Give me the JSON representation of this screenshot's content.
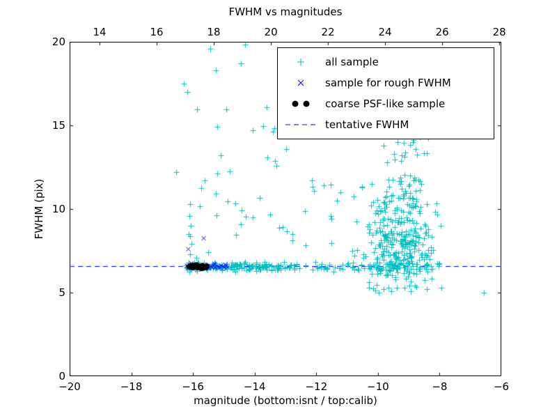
{
  "chart_data": {
    "type": "scatter",
    "title": "FWHM vs magnitudes",
    "xlabel": "magnitude (bottom:isnt / top:calib)",
    "ylabel": "FWHM (pix)",
    "xlim": [
      -20,
      -6
    ],
    "ylim": [
      0,
      20
    ],
    "top_xlim": [
      12.95,
      28.07
    ],
    "xticks": {
      "values": [
        -20,
        -18,
        -16,
        -14,
        -12,
        -10,
        -8,
        -6
      ],
      "labels": [
        "−20",
        "−18",
        "−16",
        "−14",
        "−12",
        "−10",
        "−8",
        "−6"
      ]
    },
    "top_xticks": {
      "values": [
        14,
        16,
        18,
        20,
        22,
        24,
        26,
        28
      ],
      "labels": [
        "14",
        "16",
        "18",
        "20",
        "22",
        "24",
        "26",
        "28"
      ]
    },
    "yticks": {
      "values": [
        0,
        5,
        10,
        15,
        20
      ],
      "labels": [
        "0",
        "5",
        "10",
        "15",
        "20"
      ]
    },
    "grid": false,
    "legend_position": "upper right",
    "seed": 42,
    "colors": {
      "all_sample": "#00bfbf",
      "rough_fwhm": "#0000ff",
      "coarse_psf": "#000000",
      "tentative_line": "#0000ff",
      "axis": "#000000"
    },
    "series": [
      {
        "name": "all sample",
        "marker": "plus",
        "color": "#00bfbf",
        "points": [
          [
            -6.57,
            5.0
          ],
          [
            -7.95,
            5.3
          ],
          [
            -16.55,
            12.2
          ],
          [
            -16.3,
            17.5
          ],
          [
            -15.44,
            19.6
          ],
          [
            -14.3,
            19.85
          ],
          [
            -14.45,
            18.7
          ],
          [
            -15.25,
            18.3
          ],
          [
            -13.6,
            16.1
          ],
          [
            -14.05,
            14.7
          ],
          [
            -15.1,
            13.2
          ],
          [
            -13.3,
            12.6
          ],
          [
            -12.15,
            11.7
          ],
          [
            -11.5,
            9.4
          ],
          [
            -16.1,
            10.3
          ],
          [
            -16.12,
            9.6
          ],
          [
            -16.08,
            9.0
          ],
          [
            -16.15,
            8.5
          ],
          [
            -16.05,
            7.9
          ],
          [
            -16.1,
            7.3
          ],
          [
            -15.9,
            7.1
          ],
          [
            -15.5,
            7.4
          ]
        ],
        "clusters": [
          {
            "n": 160,
            "x": {
              "dist": "uniform",
              "min": -16.25,
              "max": -12.8
            },
            "y": {
              "dist": "normal",
              "mean": 6.55,
              "sd": 0.13
            }
          },
          {
            "n": 85,
            "x": {
              "dist": "uniform",
              "min": -12.8,
              "max": -7.95
            },
            "y": {
              "dist": "normal",
              "mean": 6.55,
              "sd": 0.13
            }
          },
          {
            "n": 330,
            "x": {
              "dist": "normal",
              "mean": -9.4,
              "sd": 0.6,
              "min": -10.9,
              "max": -7.75
            },
            "y": {
              "dist": "normal",
              "mean": 7.8,
              "sd": 1.8,
              "min": 5.0,
              "max": 13.5
            }
          },
          {
            "n": 40,
            "x": {
              "dist": "normal",
              "mean": -9.1,
              "sd": 0.35,
              "min": -10.2,
              "max": -8.0
            },
            "y": {
              "dist": "uniform",
              "min": 10.0,
              "max": 14.8
            }
          },
          {
            "n": 30,
            "x": {
              "dist": "uniform",
              "min": -16.2,
              "max": -12.9
            },
            "y": {
              "dist": "uniform",
              "min": 7.6,
              "max": 18.5
            }
          },
          {
            "n": 12,
            "x": {
              "dist": "uniform",
              "min": -12.9,
              "max": -10.95
            },
            "y": {
              "dist": "uniform",
              "min": 6.9,
              "max": 12.0
            }
          }
        ]
      },
      {
        "name": "sample for rough FWHM",
        "marker": "x",
        "color": "#0000ff",
        "points": [
          [
            -16.2,
            6.6
          ],
          [
            -16.15,
            6.5
          ],
          [
            -16.1,
            6.65
          ],
          [
            -16.05,
            6.45
          ],
          [
            -16.0,
            6.58
          ],
          [
            -15.95,
            6.7
          ],
          [
            -15.9,
            6.5
          ],
          [
            -15.85,
            6.62
          ],
          [
            -15.8,
            6.55
          ],
          [
            -15.78,
            6.48
          ],
          [
            -15.72,
            6.6
          ],
          [
            -15.68,
            6.52
          ],
          [
            -15.62,
            6.66
          ],
          [
            -15.58,
            6.5
          ],
          [
            -15.52,
            6.6
          ],
          [
            -15.48,
            6.45
          ],
          [
            -15.42,
            6.58
          ],
          [
            -15.38,
            6.52
          ],
          [
            -15.32,
            6.63
          ],
          [
            -15.28,
            6.5
          ],
          [
            -15.22,
            6.6
          ],
          [
            -15.18,
            6.55
          ],
          [
            -15.12,
            6.48
          ],
          [
            -15.08,
            6.62
          ],
          [
            -15.02,
            6.55
          ],
          [
            -14.98,
            6.5
          ],
          [
            -14.92,
            6.6
          ],
          [
            -14.88,
            6.52
          ],
          [
            -15.65,
            8.25
          ],
          [
            -16.15,
            7.6
          ],
          [
            -16.05,
            6.75
          ],
          [
            -15.3,
            6.72
          ],
          [
            -14.95,
            6.68
          ]
        ],
        "clusters": []
      },
      {
        "name": "coarse PSF-like sample",
        "marker": "dot",
        "color": "#000000",
        "points": [
          [
            -16.12,
            6.55
          ],
          [
            -16.05,
            6.6
          ],
          [
            -16.0,
            6.5
          ],
          [
            -15.95,
            6.62
          ],
          [
            -15.9,
            6.55
          ],
          [
            -15.85,
            6.5
          ],
          [
            -15.8,
            6.58
          ],
          [
            -15.75,
            6.52
          ],
          [
            -15.7,
            6.6
          ],
          [
            -15.65,
            6.55
          ],
          [
            -15.6,
            6.5
          ],
          [
            -15.55,
            6.57
          ],
          [
            -15.72,
            6.45
          ],
          [
            -15.88,
            6.65
          ]
        ],
        "clusters": []
      },
      {
        "name": "tentative FWHM",
        "type": "hline",
        "linestyle": "dashed",
        "color": "#0000ff",
        "y": 6.58
      }
    ]
  }
}
